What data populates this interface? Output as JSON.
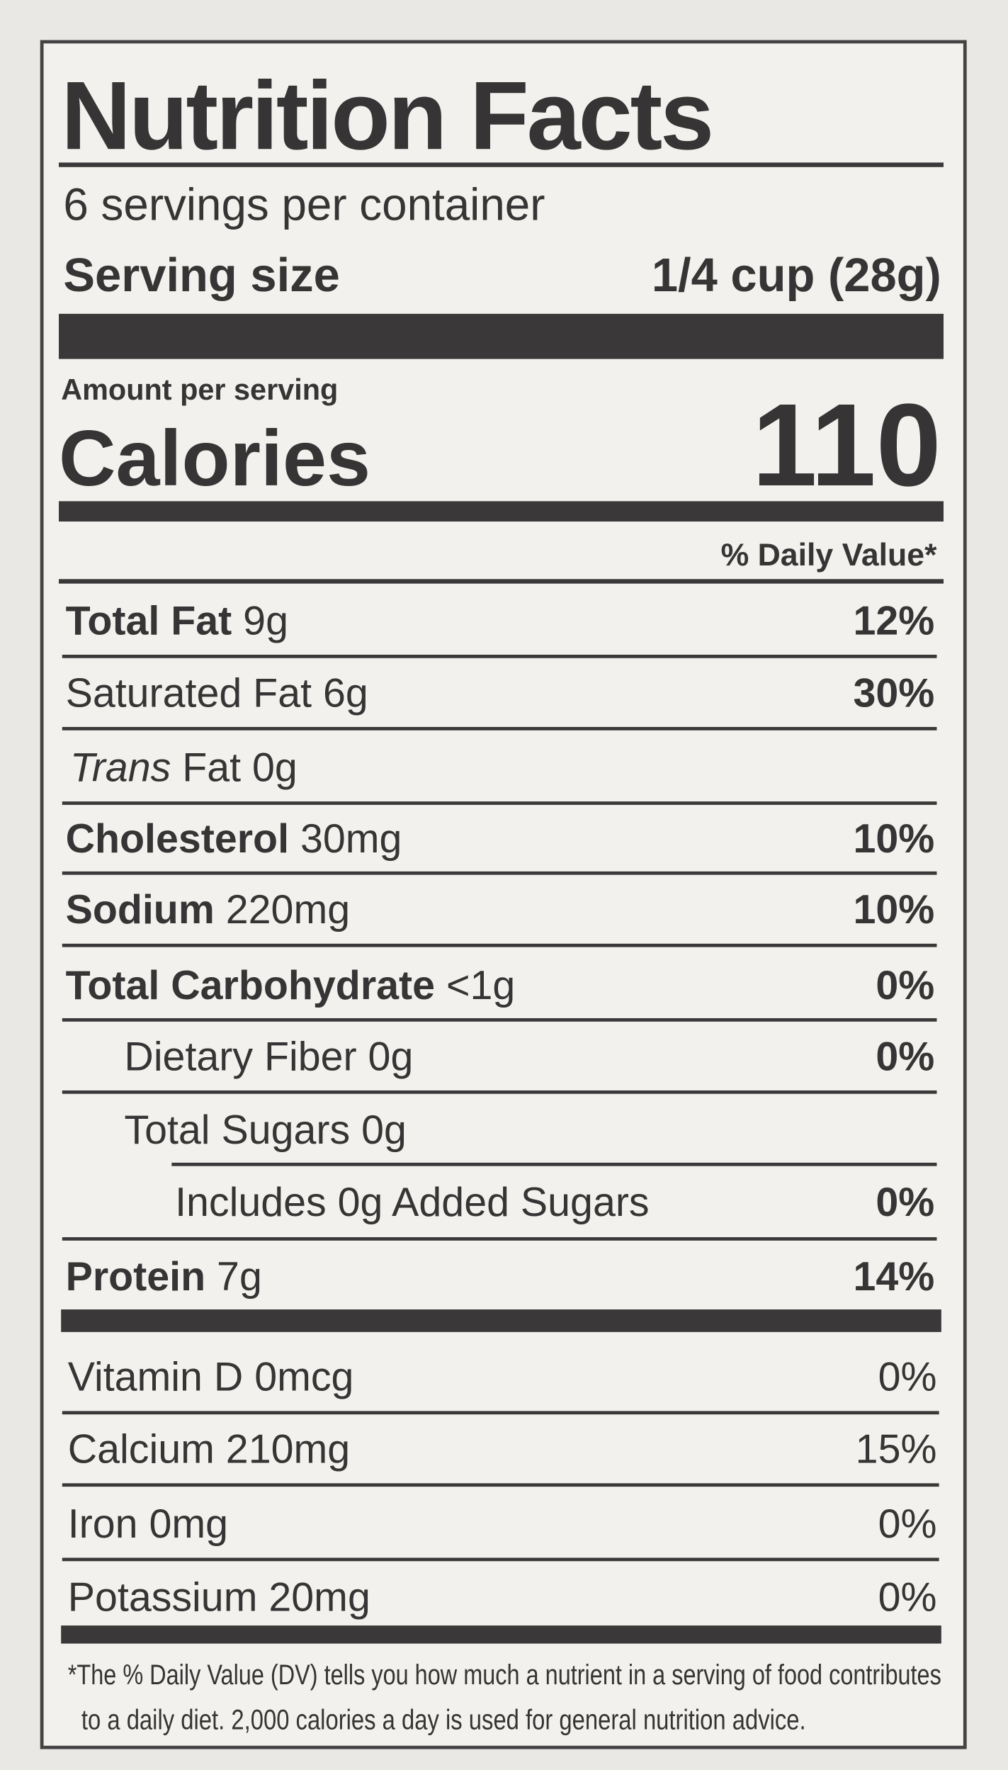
{
  "title": "Nutrition Facts",
  "servings": "6 servings per container",
  "serving_size": {
    "label": "Serving size",
    "value": "1/4 cup (28g)"
  },
  "amount_per_serving": "Amount per serving",
  "calories": {
    "label": "Calories",
    "value": "110"
  },
  "dv_header": "% Daily Value*",
  "nutrients": [
    {
      "name": "Total Fat",
      "amount": "9g",
      "dv": "12%"
    },
    {
      "name": "Saturated Fat 6g",
      "dv": "30%"
    },
    {
      "name": "Trans",
      "amount": "Fat 0g"
    },
    {
      "name": "Cholesterol",
      "amount": "30mg",
      "dv": "10%"
    },
    {
      "name": "Sodium",
      "amount": "220mg",
      "dv": "10%"
    },
    {
      "name": "Total Carbohydrate",
      "amount": "<1g",
      "dv": "0%"
    },
    {
      "name": "Dietary Fiber 0g",
      "dv": "0%"
    },
    {
      "name": "Total Sugars 0g"
    },
    {
      "name": "Includes 0g Added Sugars",
      "dv": "0%"
    },
    {
      "name": "Protein",
      "amount": "7g",
      "dv": "14%"
    }
  ],
  "vitamins": [
    {
      "name": "Vitamin D 0mcg",
      "dv": "0%"
    },
    {
      "name": "Calcium 210mg",
      "dv": "15%"
    },
    {
      "name": "Iron 0mg",
      "dv": "0%"
    },
    {
      "name": "Potassium 20mg",
      "dv": "0%"
    }
  ],
  "footnote": [
    "*The % Daily Value (DV) tells you how much a nutrient in a serving of food contributes",
    "to a daily diet. 2,000 calories a day is used for general nutrition advice."
  ]
}
